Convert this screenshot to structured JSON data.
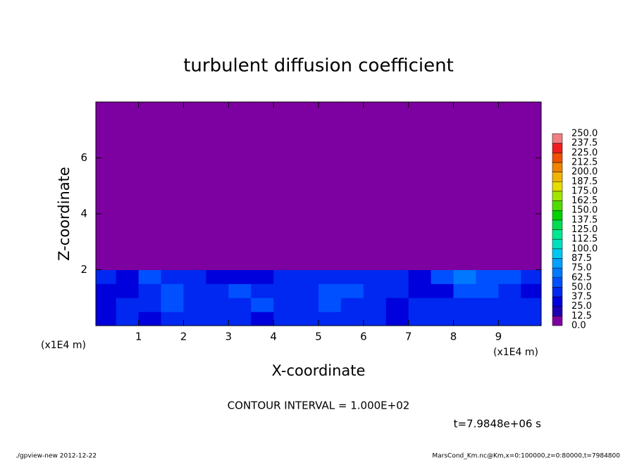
{
  "chart_data": {
    "type": "contour",
    "title": "turbulent diffusion coefficient",
    "xlabel": "X-coordinate",
    "ylabel": "Z-coordinate",
    "x_unit_label": "(x1E4 m)",
    "annotation": "CONTOUR INTERVAL = 1.000E+02",
    "time_label": "t=7.9848e+06 s",
    "footer_left": "./gpview-new  2012-12-22",
    "footer_right": "MarsCond_Km.nc@Km,x=0:100000,z=0:80000,t=7984800",
    "xlim": [
      0.05,
      9.95
    ],
    "ylim": [
      0,
      8
    ],
    "xticks": [
      1,
      2,
      3,
      4,
      5,
      6,
      7,
      8,
      9
    ],
    "yticks": [
      2,
      4,
      6
    ],
    "x_edges": [
      0,
      0.5,
      1,
      1.5,
      2,
      2.5,
      3,
      3.5,
      4,
      4.5,
      5,
      5.5,
      6,
      6.5,
      7,
      7.5,
      8,
      8.5,
      9,
      9.5,
      10
    ],
    "y_edges": [
      0,
      0.5,
      1,
      1.5,
      2,
      8
    ],
    "values": [
      [
        35,
        40,
        30,
        45,
        38,
        42,
        40,
        35,
        45,
        40,
        38,
        42,
        40,
        36,
        45,
        40,
        38,
        40,
        42,
        38
      ],
      [
        30,
        45,
        38,
        55,
        40,
        38,
        42,
        50,
        40,
        45,
        50,
        45,
        40,
        35,
        40,
        45,
        40,
        42,
        38,
        40
      ],
      [
        28,
        32,
        40,
        60,
        38,
        45,
        50,
        40,
        38,
        42,
        55,
        50,
        45,
        38,
        30,
        35,
        60,
        55,
        45,
        35
      ],
      [
        38,
        35,
        60,
        45,
        40,
        35,
        30,
        32,
        40,
        45,
        38,
        42,
        40,
        45,
        35,
        50,
        65,
        60,
        50,
        40
      ],
      [
        0,
        0,
        0,
        0,
        0,
        0,
        0,
        0,
        0,
        0,
        0,
        0,
        0,
        0,
        0,
        0,
        0,
        0,
        0,
        0
      ]
    ],
    "levels": [
      {
        "value": 0,
        "label": "0.0"
      },
      {
        "value": 12.5,
        "label": "12.5"
      },
      {
        "value": 25,
        "label": "25.0"
      },
      {
        "value": 37.5,
        "label": "37.5"
      },
      {
        "value": 50,
        "label": "50.0"
      },
      {
        "value": 62.5,
        "label": "62.5"
      },
      {
        "value": 75,
        "label": "75.0"
      },
      {
        "value": 87.5,
        "label": "87.5"
      },
      {
        "value": 100,
        "label": "100.0"
      },
      {
        "value": 112.5,
        "label": "112.5"
      },
      {
        "value": 125,
        "label": "125.0"
      },
      {
        "value": 137.5,
        "label": "137.5"
      },
      {
        "value": 150,
        "label": "150.0"
      },
      {
        "value": 162.5,
        "label": "162.5"
      },
      {
        "value": 175,
        "label": "175.0"
      },
      {
        "value": 187.5,
        "label": "187.5"
      },
      {
        "value": 200,
        "label": "200.0"
      },
      {
        "value": 212.5,
        "label": "212.5"
      },
      {
        "value": 225,
        "label": "225.0"
      },
      {
        "value": 237.5,
        "label": "237.5"
      },
      {
        "value": 250,
        "label": "250.0"
      }
    ],
    "colors": [
      "#7d00a0",
      "#1e00b4",
      "#0000dc",
      "#0028f0",
      "#0050ff",
      "#0078ff",
      "#00a0ff",
      "#00c8f0",
      "#00e0c0",
      "#00e890",
      "#00dc50",
      "#00d200",
      "#50dc00",
      "#a0e600",
      "#e6dc00",
      "#f0b400",
      "#f08200",
      "#f05000",
      "#f01e1e",
      "#f08080"
    ]
  }
}
